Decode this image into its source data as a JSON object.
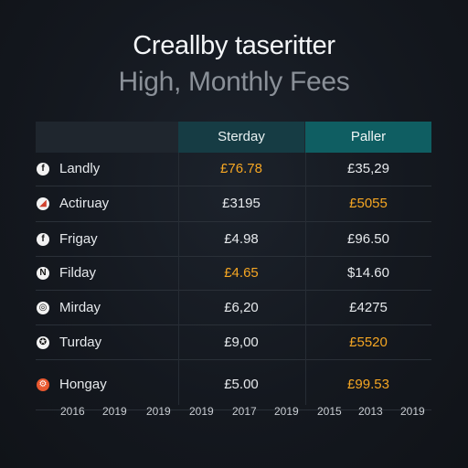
{
  "title": "Creallby taseritter",
  "subtitle": "High, Monthly Fees",
  "table": {
    "headers": [
      "Sterday",
      "Paller"
    ],
    "rows": [
      {
        "name": "Landly",
        "icon": "f",
        "icon_name": "f-logo-icon",
        "v1": "£76.78",
        "v1_highlight": true,
        "v2": "£35,29",
        "v2_highlight": false
      },
      {
        "name": "Actiruay",
        "icon": "◢",
        "icon_name": "red-logo-icon",
        "v1": "£3195",
        "v1_highlight": false,
        "v2": "£5055",
        "v2_highlight": true
      },
      {
        "name": "Frigay",
        "icon": "f",
        "icon_name": "f-logo-icon",
        "v1": "£4.98",
        "v1_highlight": false,
        "v2": "£96.50",
        "v2_highlight": false
      },
      {
        "name": "Filday",
        "icon": "N",
        "icon_name": "n-logo-icon",
        "v1": "£4.65",
        "v1_highlight": true,
        "v2": "$14.60",
        "v2_highlight": false
      },
      {
        "name": "Mirday",
        "icon": "◎",
        "icon_name": "badge-logo-icon",
        "v1": "£6,20",
        "v1_highlight": false,
        "v2": "£4275",
        "v2_highlight": false
      },
      {
        "name": "Turday",
        "icon": "✪",
        "icon_name": "crest-logo-icon",
        "v1": "£9,00",
        "v1_highlight": false,
        "v2": "£5520",
        "v2_highlight": true
      },
      {
        "name": "Hongay",
        "icon": "⚙",
        "icon_name": "orange-gear-logo-icon",
        "v1": "£5.00",
        "v1_highlight": false,
        "v2": "£99.53",
        "v2_highlight": true
      }
    ]
  },
  "years": [
    "2016",
    "2019",
    "2019",
    "2019",
    "2017",
    "2019",
    "2015",
    "2013",
    "2019"
  ],
  "colors": {
    "background": "#14181f",
    "header_col1": "#163c44",
    "header_col2": "#0f5e62",
    "highlight": "#f5a623"
  }
}
